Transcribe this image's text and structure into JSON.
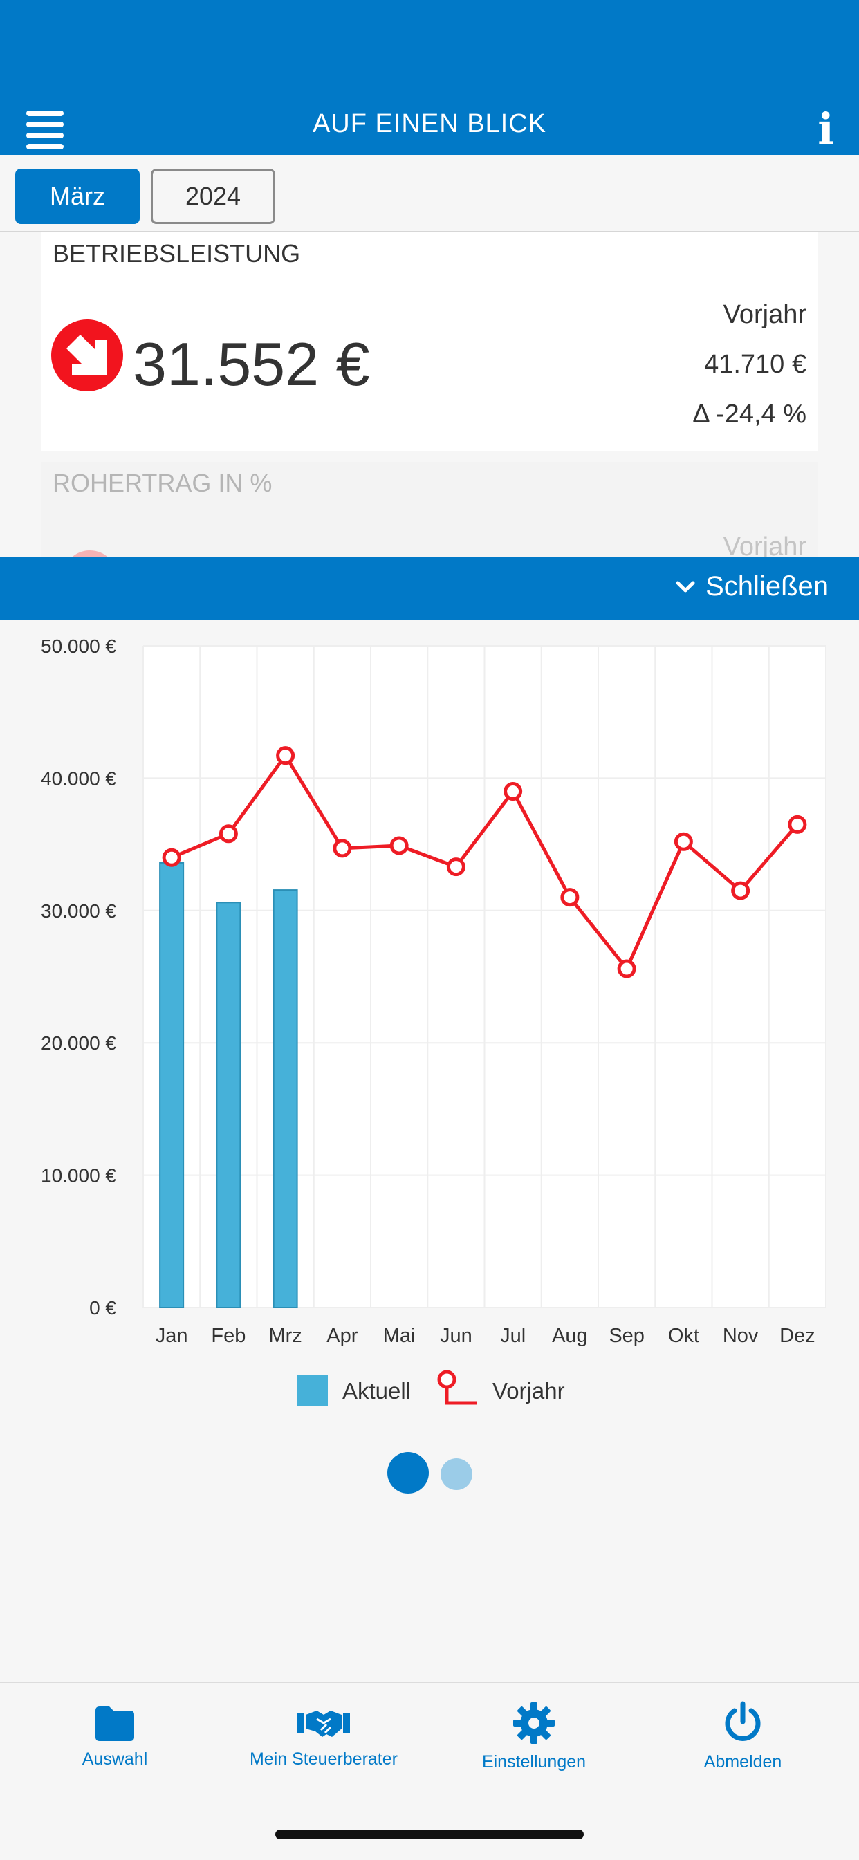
{
  "header": {
    "title": "AUF EINEN BLICK",
    "menu_icon": "hamburger-icon",
    "info_icon": "info-icon"
  },
  "selector": {
    "month": "März",
    "year": "2024"
  },
  "kpi": {
    "title": "BETRIEBSLEISTUNG",
    "value": "31.552 €",
    "trend_icon": "arrow-down-right-icon",
    "trend_color": "#f2141e",
    "prev_label": "Vorjahr",
    "prev_value": "41.710 €",
    "delta": "Δ -24,4 %"
  },
  "kpi2": {
    "title": "ROHERTRAG IN %",
    "prev_label": "Vorjahr"
  },
  "panel": {
    "close_label": "Schließen"
  },
  "chart_data": {
    "type": "bar",
    "categories": [
      "Jan",
      "Feb",
      "Mrz",
      "Apr",
      "Mai",
      "Jun",
      "Jul",
      "Aug",
      "Sep",
      "Okt",
      "Nov",
      "Dez"
    ],
    "ylim": [
      0,
      50000
    ],
    "yticks": [
      0,
      10000,
      20000,
      30000,
      40000,
      50000
    ],
    "ytick_labels": [
      "0 €",
      "10.000 €",
      "20.000 €",
      "30.000 €",
      "40.000 €",
      "50.000 €"
    ],
    "grid": true,
    "legend_position": "bottom",
    "series": [
      {
        "name": "Aktuell",
        "type": "bar",
        "color": "#46b1d9",
        "values": [
          33600,
          30600,
          31552,
          null,
          null,
          null,
          null,
          null,
          null,
          null,
          null,
          null
        ]
      },
      {
        "name": "Vorjahr",
        "type": "line",
        "color": "#ee1c25",
        "values": [
          34000,
          35800,
          41710,
          34700,
          34900,
          33300,
          39000,
          31000,
          25600,
          35200,
          31500,
          36500
        ]
      }
    ]
  },
  "pager": {
    "pages": 2,
    "current": 1
  },
  "tabbar": {
    "items": [
      {
        "label": "Auswahl",
        "icon": "folder-icon"
      },
      {
        "label": "Mein Steuerberater",
        "icon": "handshake-icon"
      },
      {
        "label": "Einstellungen",
        "icon": "gear-icon"
      },
      {
        "label": "Abmelden",
        "icon": "power-icon"
      }
    ],
    "color": "#0179c7"
  }
}
